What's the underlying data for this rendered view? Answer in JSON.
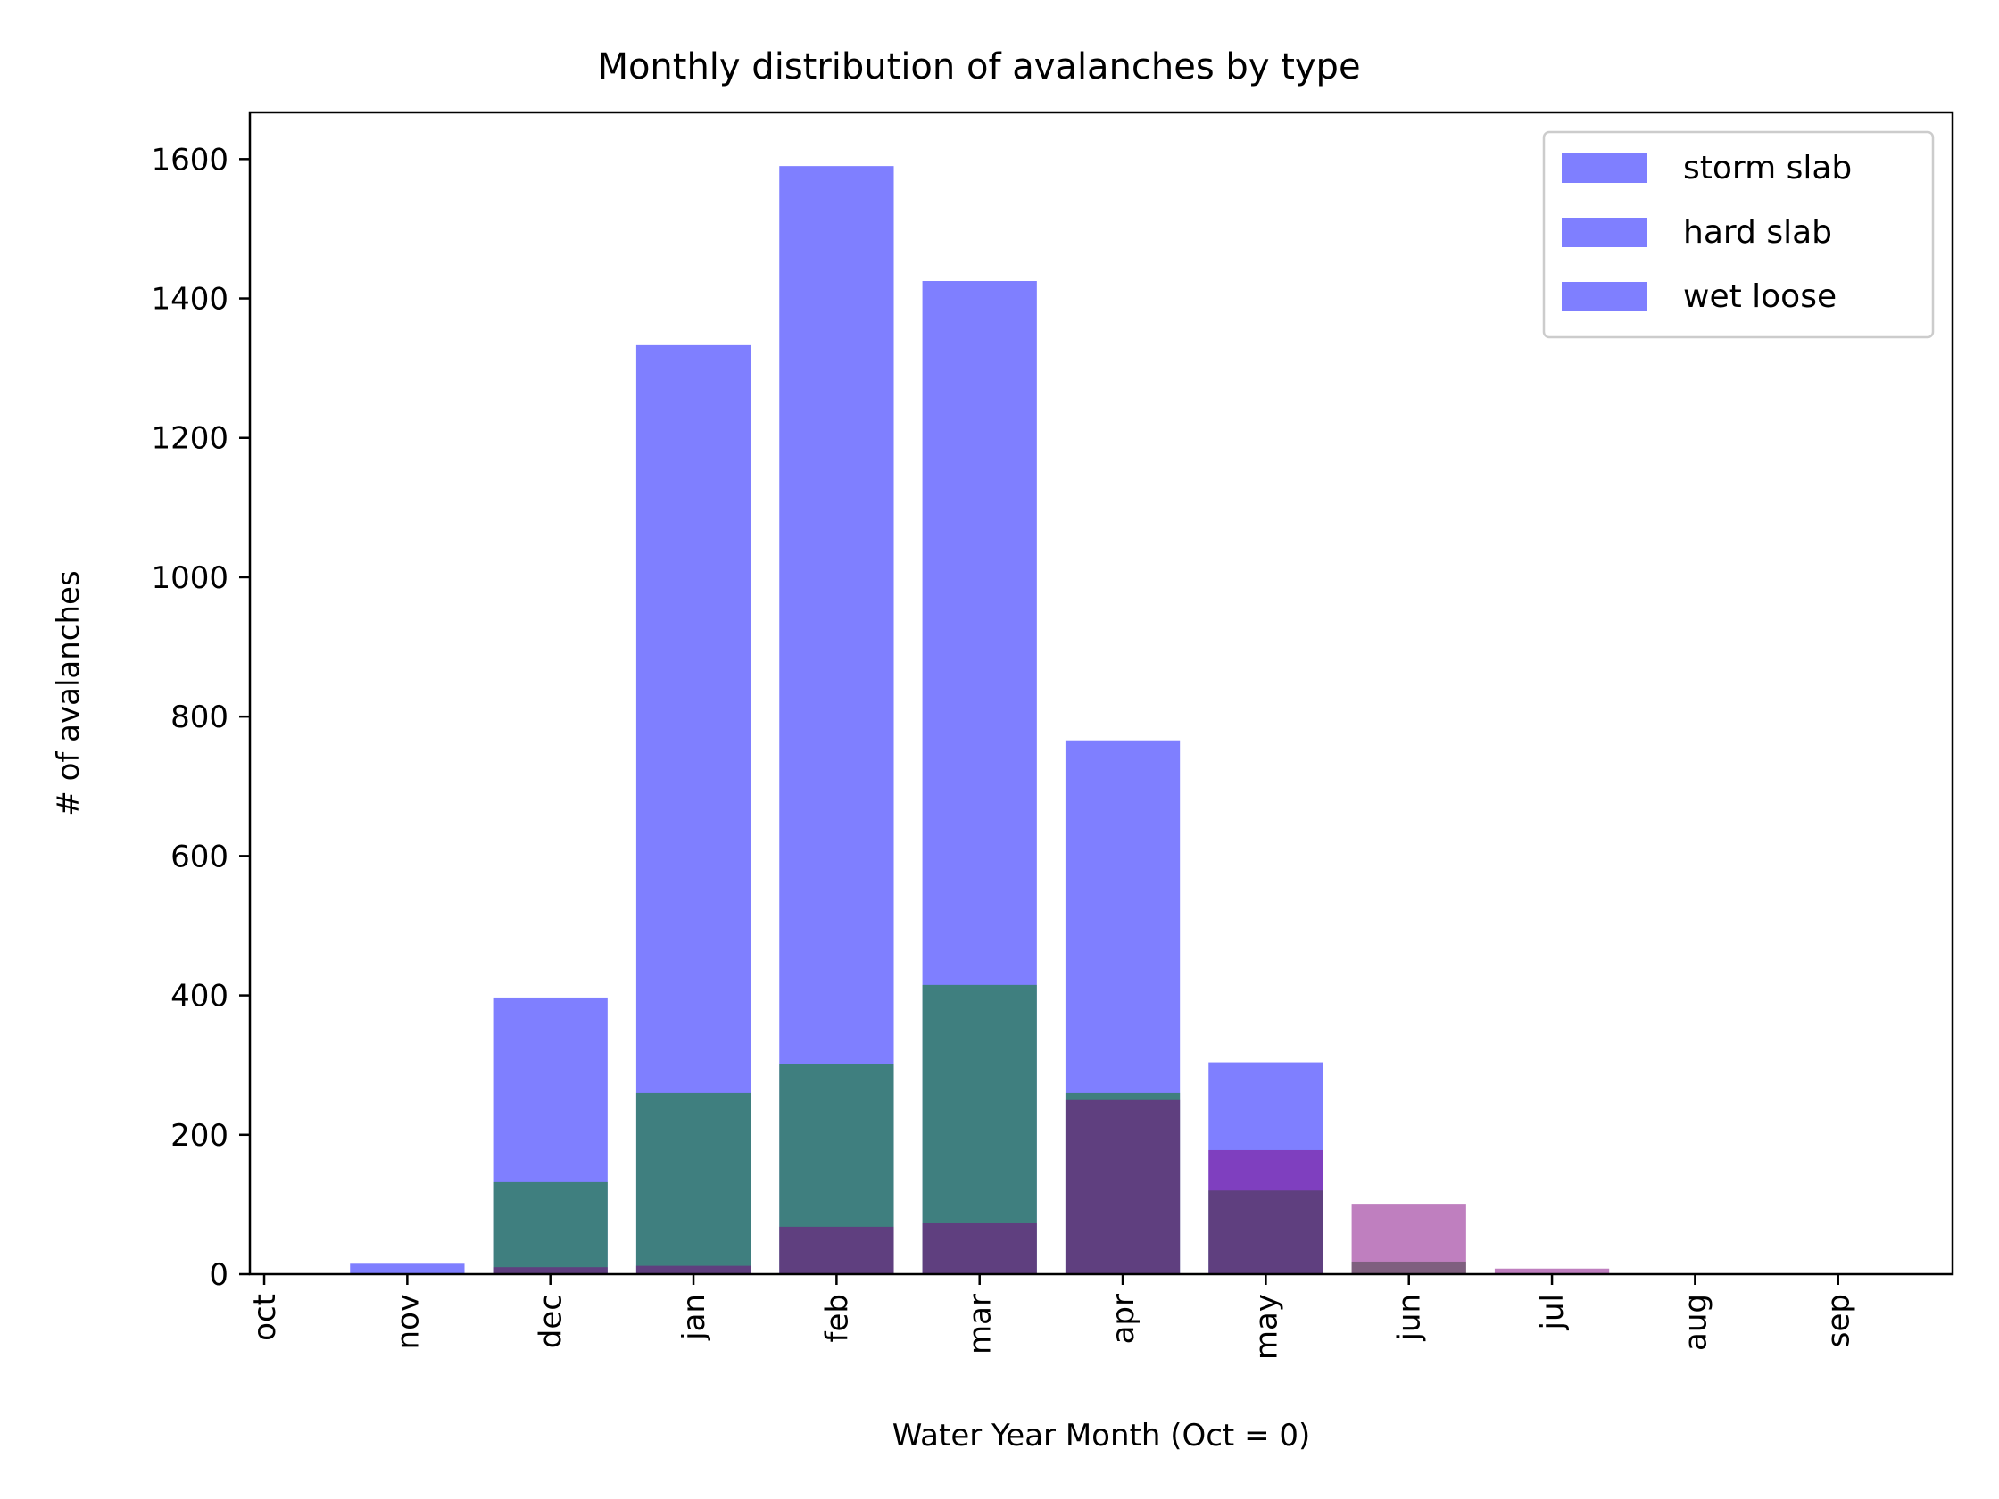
{
  "chart_data": {
    "type": "bar",
    "title": "Monthly distribution of avalanches by type",
    "xlabel": "Water Year Month (Oct = 0)",
    "ylabel": "# of avalanches",
    "categories": [
      "oct",
      "nov",
      "dec",
      "jan",
      "feb",
      "mar",
      "apr",
      "may",
      "jun",
      "jul",
      "aug",
      "sep"
    ],
    "xlim": [
      -0.1,
      11.8
    ],
    "ylim": [
      0,
      1667
    ],
    "yticks": [
      0,
      200,
      400,
      600,
      800,
      1000,
      1200,
      1400,
      1600
    ],
    "grid": false,
    "legend_position": "top-right",
    "series": [
      {
        "name": "storm slab",
        "color": "#0000ff",
        "opacity": 0.5,
        "values": [
          0,
          15,
          397,
          1333,
          1590,
          1425,
          766,
          304,
          0,
          0,
          0,
          0
        ]
      },
      {
        "name": "hard slab",
        "color": "#008000",
        "opacity": 0.5,
        "values": [
          0,
          0,
          132,
          260,
          302,
          415,
          260,
          120,
          18,
          0,
          0,
          0
        ]
      },
      {
        "name": "wet loose",
        "color": "#800080",
        "opacity": 0.5,
        "values": [
          0,
          0,
          10,
          12,
          68,
          73,
          250,
          178,
          101,
          8,
          0,
          0
        ]
      }
    ],
    "legend_swatch_color": "#0000ff",
    "legend_swatch_opacity": 0.5
  }
}
